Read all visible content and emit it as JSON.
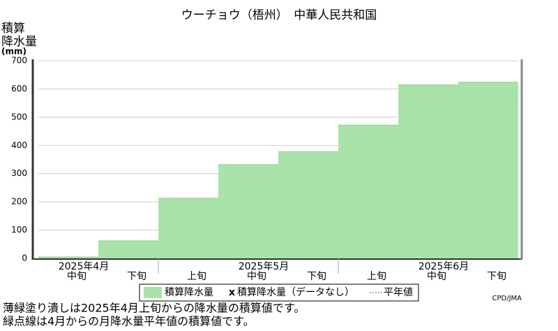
{
  "chart_data": {
    "type": "step-area",
    "title": "ウーチョウ（梧州）　中華人民共和国",
    "y_label": [
      "積算",
      "降水量",
      "(mm)"
    ],
    "groups": [
      {
        "label": "2025年4月",
        "categories": [
          "中旬",
          "下旬"
        ]
      },
      {
        "label": "2025年5月",
        "categories": [
          "上旬",
          "中旬",
          "下旬"
        ]
      },
      {
        "label": "2025年6月",
        "categories": [
          "上旬",
          "中旬",
          "下旬"
        ]
      }
    ],
    "series": [
      {
        "name": "積算降水量",
        "color": "#aae3aa",
        "values": [
          5,
          62,
          213,
          332,
          378,
          472,
          615,
          624
        ]
      }
    ],
    "legend_entries": [
      "積算降水量（データなし）",
      "平年値"
    ],
    "ylim": [
      0,
      700
    ],
    "yticks": [
      0,
      100,
      200,
      300,
      400,
      500,
      600,
      700
    ],
    "grid": true,
    "notes": [
      "薄緑塗り潰しは2025年4月上旬からの降水量の積算値です。",
      "緑点線は4月からの月降水量平年値の積算値です。"
    ],
    "credit": "CPD/JMA"
  }
}
